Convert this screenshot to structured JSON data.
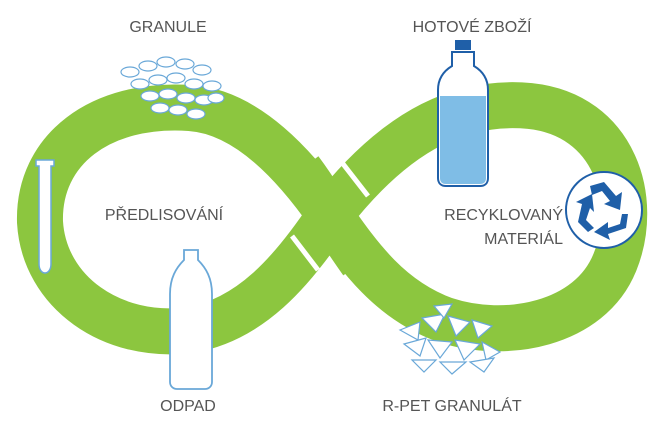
{
  "nodes": [
    {
      "label": "GRANULE"
    },
    {
      "label": "HOTOVÉ ZBOŽÍ"
    },
    {
      "label": "PŘEDLISOVÁNÍ"
    },
    {
      "label": [
        "RECYKLOVANÝ",
        "MATERIÁL"
      ]
    },
    {
      "label": "ODPAD"
    },
    {
      "label": "R-PET GRANULÁT"
    }
  ]
}
